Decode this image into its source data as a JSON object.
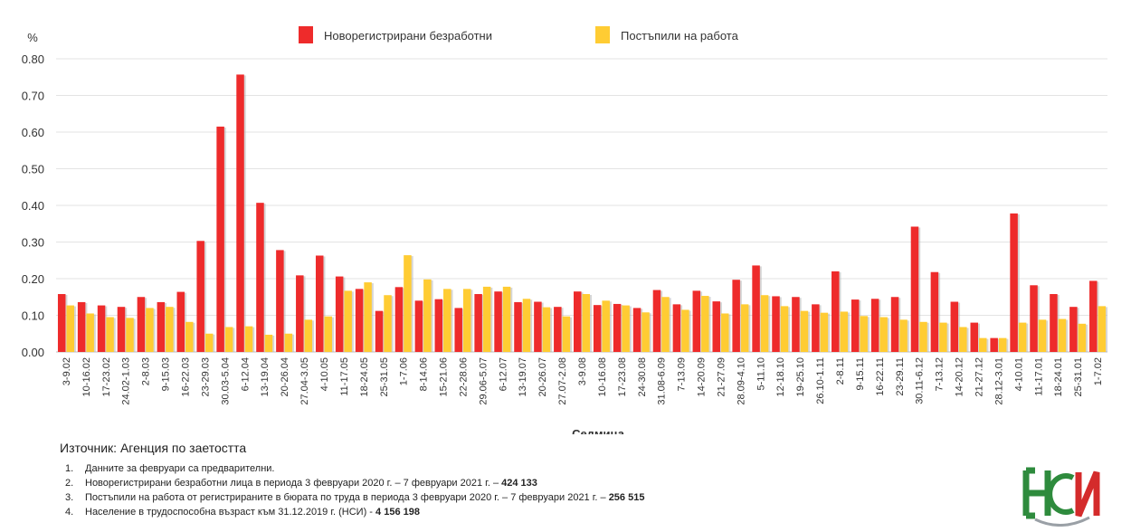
{
  "chart_data": {
    "type": "bar",
    "y_unit_label": "%",
    "xlabel": "Седмица",
    "ylim": [
      0,
      0.8
    ],
    "yticks": [
      "0.00",
      "0.10",
      "0.20",
      "0.30",
      "0.40",
      "0.50",
      "0.60",
      "0.70",
      "0.80"
    ],
    "grid": true,
    "legend_position": "top",
    "categories": [
      "3-9.02",
      "10-16.02",
      "17-23.02",
      "24.02-1.03",
      "2-8.03",
      "9-15.03",
      "16-22.03",
      "23-29.03",
      "30.03-5.04",
      "6-12.04",
      "13-19.04",
      "20-26.04",
      "27.04-3.05",
      "4-10.05",
      "11-17.05",
      "18-24.05",
      "25-31.05",
      "1-7.06",
      "8-14.06",
      "15-21.06",
      "22-28.06",
      "29.06-5.07",
      "6-12.07",
      "13-19.07",
      "20-26.07",
      "27.07-2.08",
      "3-9.08",
      "10-16.08",
      "17-23.08",
      "24-30.08",
      "31.08-6.09",
      "7-13.09",
      "14-20.09",
      "21-27.09",
      "28.09-4.10",
      "5-11.10",
      "12-18.10",
      "19-25.10",
      "26.10-1.11",
      "2-8.11",
      "9-15.11",
      "16-22.11",
      "23-29.11",
      "30.11-6.12",
      "7-13.12",
      "14-20.12",
      "21-27.12",
      "28.12-3.01",
      "4-10.01",
      "11-17.01",
      "18-24.01",
      "25-31.01",
      "1-7.02"
    ],
    "series": [
      {
        "name": "Новорегистрирани безработни",
        "color": "#ee2b2b",
        "values": [
          0.158,
          0.136,
          0.127,
          0.123,
          0.15,
          0.136,
          0.164,
          0.303,
          0.615,
          0.757,
          0.407,
          0.278,
          0.209,
          0.263,
          0.206,
          0.172,
          0.112,
          0.177,
          0.14,
          0.144,
          0.12,
          0.158,
          0.165,
          0.136,
          0.137,
          0.123,
          0.165,
          0.128,
          0.131,
          0.12,
          0.169,
          0.13,
          0.167,
          0.138,
          0.197,
          0.236,
          0.152,
          0.15,
          0.13,
          0.22,
          0.143,
          0.145,
          0.15,
          0.342,
          0.218,
          0.137,
          0.08,
          0.038,
          0.378,
          0.182,
          0.158,
          0.123,
          0.194
        ]
      },
      {
        "name": "Постъпили на работа",
        "color": "#ffcc33",
        "values": [
          0.127,
          0.105,
          0.095,
          0.093,
          0.12,
          0.123,
          0.082,
          0.05,
          0.068,
          0.07,
          0.047,
          0.05,
          0.088,
          0.097,
          0.167,
          0.19,
          0.155,
          0.264,
          0.198,
          0.172,
          0.172,
          0.178,
          0.178,
          0.145,
          0.122,
          0.097,
          0.158,
          0.14,
          0.127,
          0.108,
          0.15,
          0.115,
          0.153,
          0.105,
          0.13,
          0.155,
          0.125,
          0.112,
          0.107,
          0.11,
          0.098,
          0.095,
          0.088,
          0.082,
          0.08,
          0.068,
          0.038,
          0.038,
          0.08,
          0.088,
          0.09,
          0.077,
          0.125
        ]
      }
    ]
  },
  "source": "Източник: Агенция по заетостта",
  "notes": [
    {
      "num": "1.",
      "text": "Данните за февруари са предварителни.",
      "bold": ""
    },
    {
      "num": "2.",
      "text": "Новорегистрирани безработни лица в периода 3 февруари 2020 г. – 7 февруари 2021 г. – ",
      "bold": "424 133"
    },
    {
      "num": "3.",
      "text": "Постъпили на работа от регистрираните в бюрата по труда в периода 3 февруари 2020 г. – 7 февруари 2021 г. – ",
      "bold": "256 515"
    },
    {
      "num": "4.",
      "text": "Население в трудоспособна възраст към 31.12.2019 г. (НСИ)   - ",
      "bold": "4 156 198"
    }
  ],
  "logo": {
    "text": "НСИ",
    "colors": [
      "#2e8b3d",
      "#d42b2b"
    ]
  }
}
